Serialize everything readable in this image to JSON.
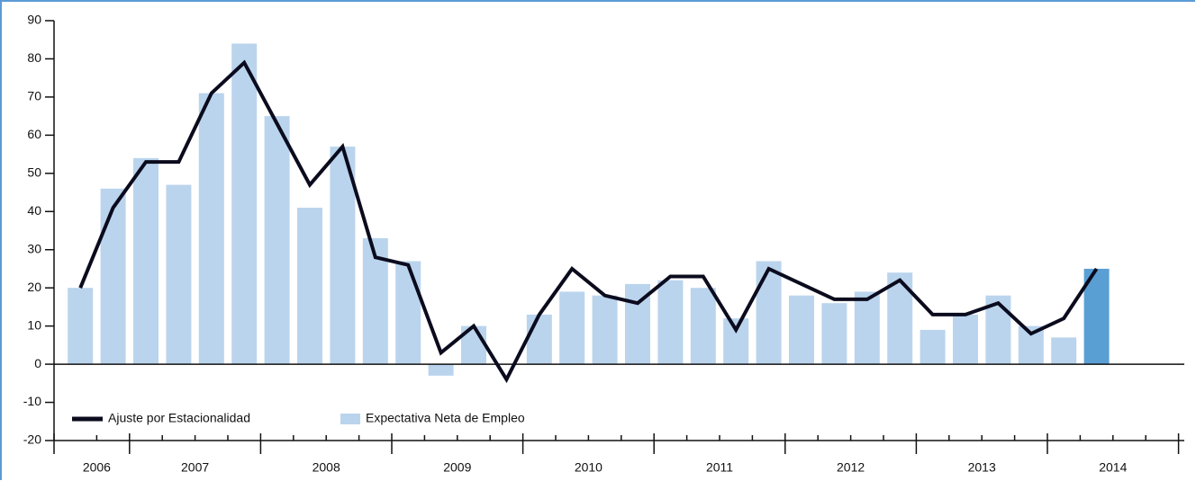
{
  "chart_data": {
    "type": "bar_line",
    "categories": [
      null,
      null,
      null,
      null,
      null,
      null,
      null,
      null,
      null,
      null,
      null,
      null,
      null,
      null,
      null,
      null,
      null,
      null,
      null,
      null,
      null,
      null,
      null,
      null,
      null,
      null,
      null,
      null,
      null,
      null,
      null,
      null
    ],
    "groups": [
      {
        "label": "2006",
        "size": 2
      },
      {
        "label": "2007",
        "size": 4
      },
      {
        "label": "2008",
        "size": 4
      },
      {
        "label": "2009",
        "size": 4
      },
      {
        "label": "2010",
        "size": 4
      },
      {
        "label": "2011",
        "size": 4
      },
      {
        "label": "2012",
        "size": 4
      },
      {
        "label": "2013",
        "size": 4
      },
      {
        "label": "2014",
        "size": 4
      }
    ],
    "series": [
      {
        "name": "Expectativa Neta de Empleo",
        "type": "bar",
        "color": "#bad4ed",
        "colors": [
          "#bad4ed",
          "#bad4ed",
          "#bad4ed",
          "#bad4ed",
          "#bad4ed",
          "#bad4ed",
          "#bad4ed",
          "#bad4ed",
          "#bad4ed",
          "#bad4ed",
          "#bad4ed",
          "#bad4ed",
          "#bad4ed",
          "#bad4ed",
          "#bad4ed",
          "#bad4ed",
          "#bad4ed",
          "#bad4ed",
          "#bad4ed",
          "#bad4ed",
          "#bad4ed",
          "#bad4ed",
          "#bad4ed",
          "#bad4ed",
          "#bad4ed",
          "#bad4ed",
          "#bad4ed",
          "#bad4ed",
          "#bad4ed",
          "#bad4ed",
          "#bad4ed",
          "#5a9fd4"
        ],
        "values": [
          20,
          46,
          54,
          47,
          71,
          84,
          65,
          41,
          57,
          33,
          27,
          -3,
          10,
          null,
          13,
          19,
          18,
          21,
          22,
          20,
          12,
          27,
          18,
          16,
          19,
          24,
          9,
          13,
          18,
          10,
          7,
          25
        ]
      },
      {
        "name": "Ajuste por Estacionalidad",
        "type": "line",
        "color": "#0b0b1e",
        "values": [
          20,
          41,
          53,
          53,
          71,
          79,
          63,
          47,
          57,
          28,
          26,
          3,
          10,
          -4,
          13,
          25,
          18,
          16,
          23,
          23,
          9,
          25,
          21,
          17,
          17,
          22,
          13,
          13,
          16,
          8,
          12,
          25
        ]
      }
    ],
    "ylim": [
      -20,
      90
    ],
    "yticks": [
      -20,
      -10,
      0,
      10,
      20,
      30,
      40,
      50,
      60,
      70,
      80,
      90
    ],
    "grid": false
  }
}
